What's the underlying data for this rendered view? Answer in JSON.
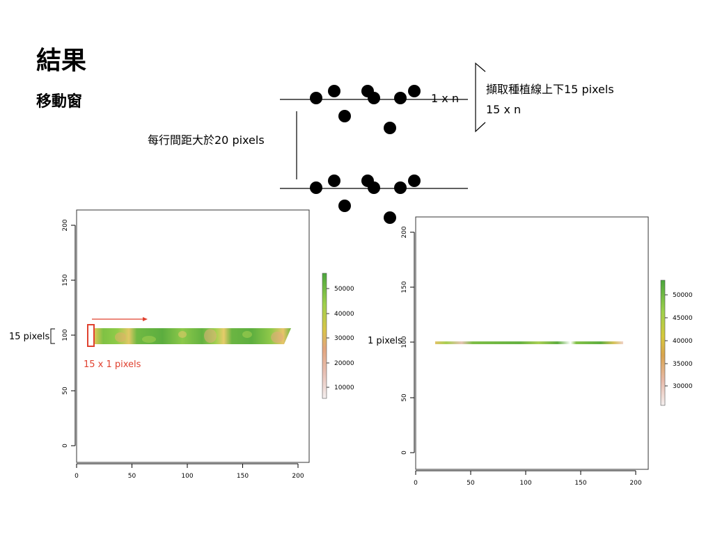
{
  "slide": {
    "title": "結果",
    "subtitle": "移動窗"
  },
  "diagram": {
    "row_spacing_label": "每行間距大於20 pixels",
    "window_1xn_label": "1 x n",
    "extract_label": "擷取種植線上下15 pixels",
    "window_15xn_label": "15 x n"
  },
  "left_plot": {
    "side_label": "15 pixels",
    "window_label": "15 x 1 pixels",
    "x_ticks": [
      "0",
      "50",
      "100",
      "150",
      "200"
    ],
    "y_ticks": [
      "0",
      "50",
      "100",
      "150",
      "200"
    ],
    "legend_ticks": [
      "10000",
      "20000",
      "30000",
      "40000",
      "50000"
    ]
  },
  "right_plot": {
    "side_label": "1 pixels",
    "x_ticks": [
      "0",
      "50",
      "100",
      "150",
      "200"
    ],
    "y_ticks": [
      "0",
      "50",
      "100",
      "150",
      "200"
    ],
    "legend_ticks": [
      "30000",
      "35000",
      "40000",
      "45000",
      "50000"
    ]
  },
  "colors": {
    "red_accent": "#e0412f",
    "green_high": "#4aa63c",
    "yellow_mid": "#d7c33a",
    "pink_low": "#f2dede"
  }
}
